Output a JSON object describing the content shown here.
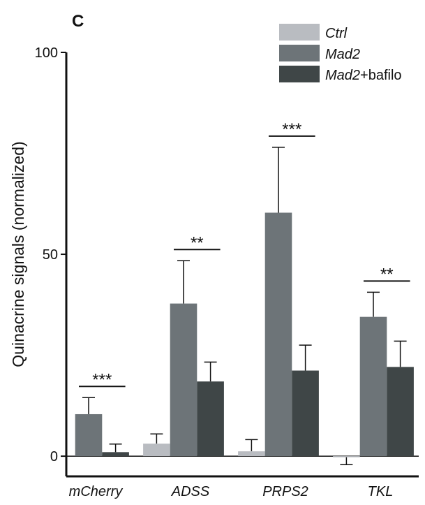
{
  "chart_data": {
    "type": "bar",
    "panel_label": "C",
    "y_label": "Quinacrine signals (normalized)",
    "categories": [
      "mCherry",
      "ADSS",
      "PRPS2",
      "TKL"
    ],
    "series": [
      {
        "name": "Ctrl",
        "color": "#b9bcc1",
        "values": [
          null,
          3.1,
          1.2,
          -0.1
        ],
        "errors": [
          null,
          2.4,
          2.9,
          2
        ]
      },
      {
        "name": "Mad2",
        "color": "#6d7478",
        "values": [
          10.4,
          37.8,
          60.3,
          34.5
        ],
        "errors": [
          4.1,
          10.6,
          16.2,
          6.1
        ]
      },
      {
        "name": "Mad2+bafilo",
        "color": "#3f4647",
        "values": [
          1,
          18.5,
          21.2,
          22.1
        ],
        "errors": [
          2,
          4.8,
          6.3,
          6.4
        ]
      }
    ],
    "significance": [
      "***",
      "**",
      "***",
      "**"
    ],
    "ylim": [
      -5,
      100
    ],
    "yticks": [
      0,
      50,
      100
    ]
  }
}
